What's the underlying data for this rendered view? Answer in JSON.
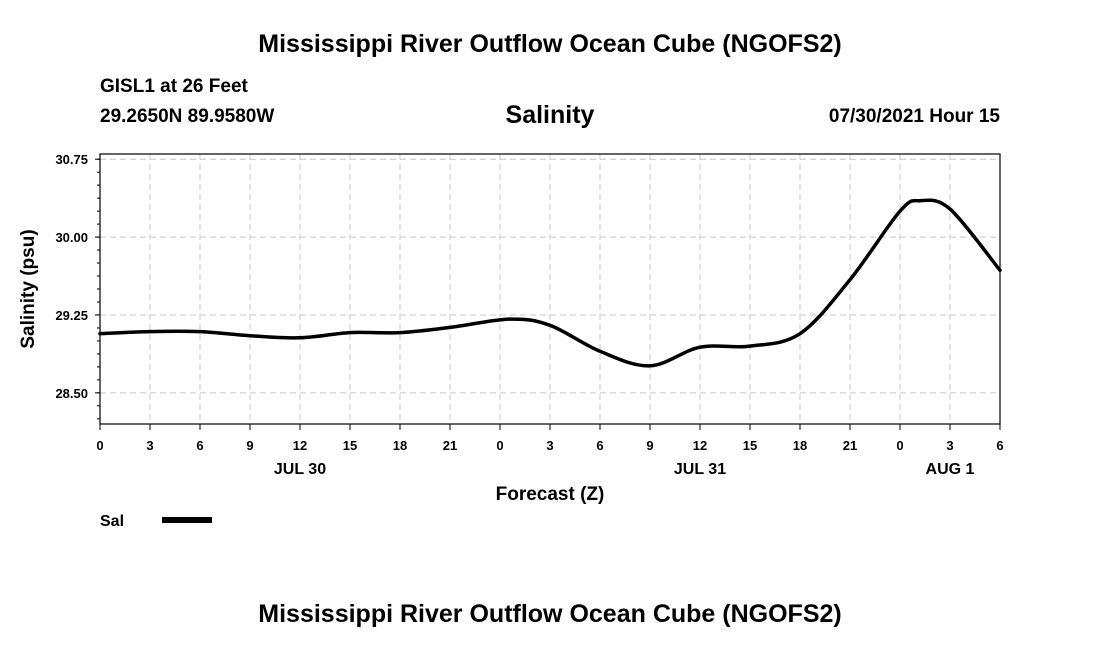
{
  "header": {
    "title": "Mississippi River Outflow Ocean Cube (NGOFS2)",
    "station": "GISL1 at 26 Feet",
    "coordinates": "29.2650N  89.9580W",
    "datetime": "07/30/2021 Hour 15"
  },
  "footer": {
    "title": "Mississippi River Outflow Ocean Cube (NGOFS2)"
  },
  "chart_data": {
    "type": "line",
    "title": "Salinity",
    "xlabel": "Forecast (Z)",
    "ylabel": "Salinity (psu)",
    "xlim": [
      0,
      54
    ],
    "ylim": [
      28.2,
      30.8
    ],
    "grid": true,
    "y_ticks": [
      {
        "value": 28.5,
        "label": "28.50"
      },
      {
        "value": 29.25,
        "label": "29.25"
      },
      {
        "value": 30.0,
        "label": "30.00"
      },
      {
        "value": 30.75,
        "label": "30.75"
      }
    ],
    "x_ticks": [
      {
        "value": 0,
        "label": "0"
      },
      {
        "value": 3,
        "label": "3"
      },
      {
        "value": 6,
        "label": "6"
      },
      {
        "value": 9,
        "label": "9"
      },
      {
        "value": 12,
        "label": "12"
      },
      {
        "value": 15,
        "label": "15"
      },
      {
        "value": 18,
        "label": "18"
      },
      {
        "value": 21,
        "label": "21"
      },
      {
        "value": 24,
        "label": "0"
      },
      {
        "value": 27,
        "label": "3"
      },
      {
        "value": 30,
        "label": "6"
      },
      {
        "value": 33,
        "label": "9"
      },
      {
        "value": 36,
        "label": "12"
      },
      {
        "value": 39,
        "label": "15"
      },
      {
        "value": 42,
        "label": "18"
      },
      {
        "value": 45,
        "label": "21"
      },
      {
        "value": 48,
        "label": "0"
      },
      {
        "value": 51,
        "label": "3"
      },
      {
        "value": 54,
        "label": "6"
      }
    ],
    "day_labels": [
      {
        "value": 12,
        "label": "JUL 30"
      },
      {
        "value": 36,
        "label": "JUL 31"
      },
      {
        "value": 51,
        "label": "AUG 1"
      }
    ],
    "legend": "bottom-left",
    "series": [
      {
        "name": "Sal",
        "x": [
          0,
          3,
          6,
          9,
          12,
          15,
          18,
          21,
          24.6,
          27,
          30,
          33,
          36,
          39,
          42,
          45,
          48,
          49.2,
          51,
          54
        ],
        "values": [
          29.07,
          29.09,
          29.09,
          29.05,
          29.03,
          29.08,
          29.08,
          29.13,
          29.21,
          29.15,
          28.9,
          28.76,
          28.94,
          28.95,
          29.07,
          29.59,
          30.25,
          30.35,
          30.27,
          29.68
        ]
      }
    ]
  }
}
